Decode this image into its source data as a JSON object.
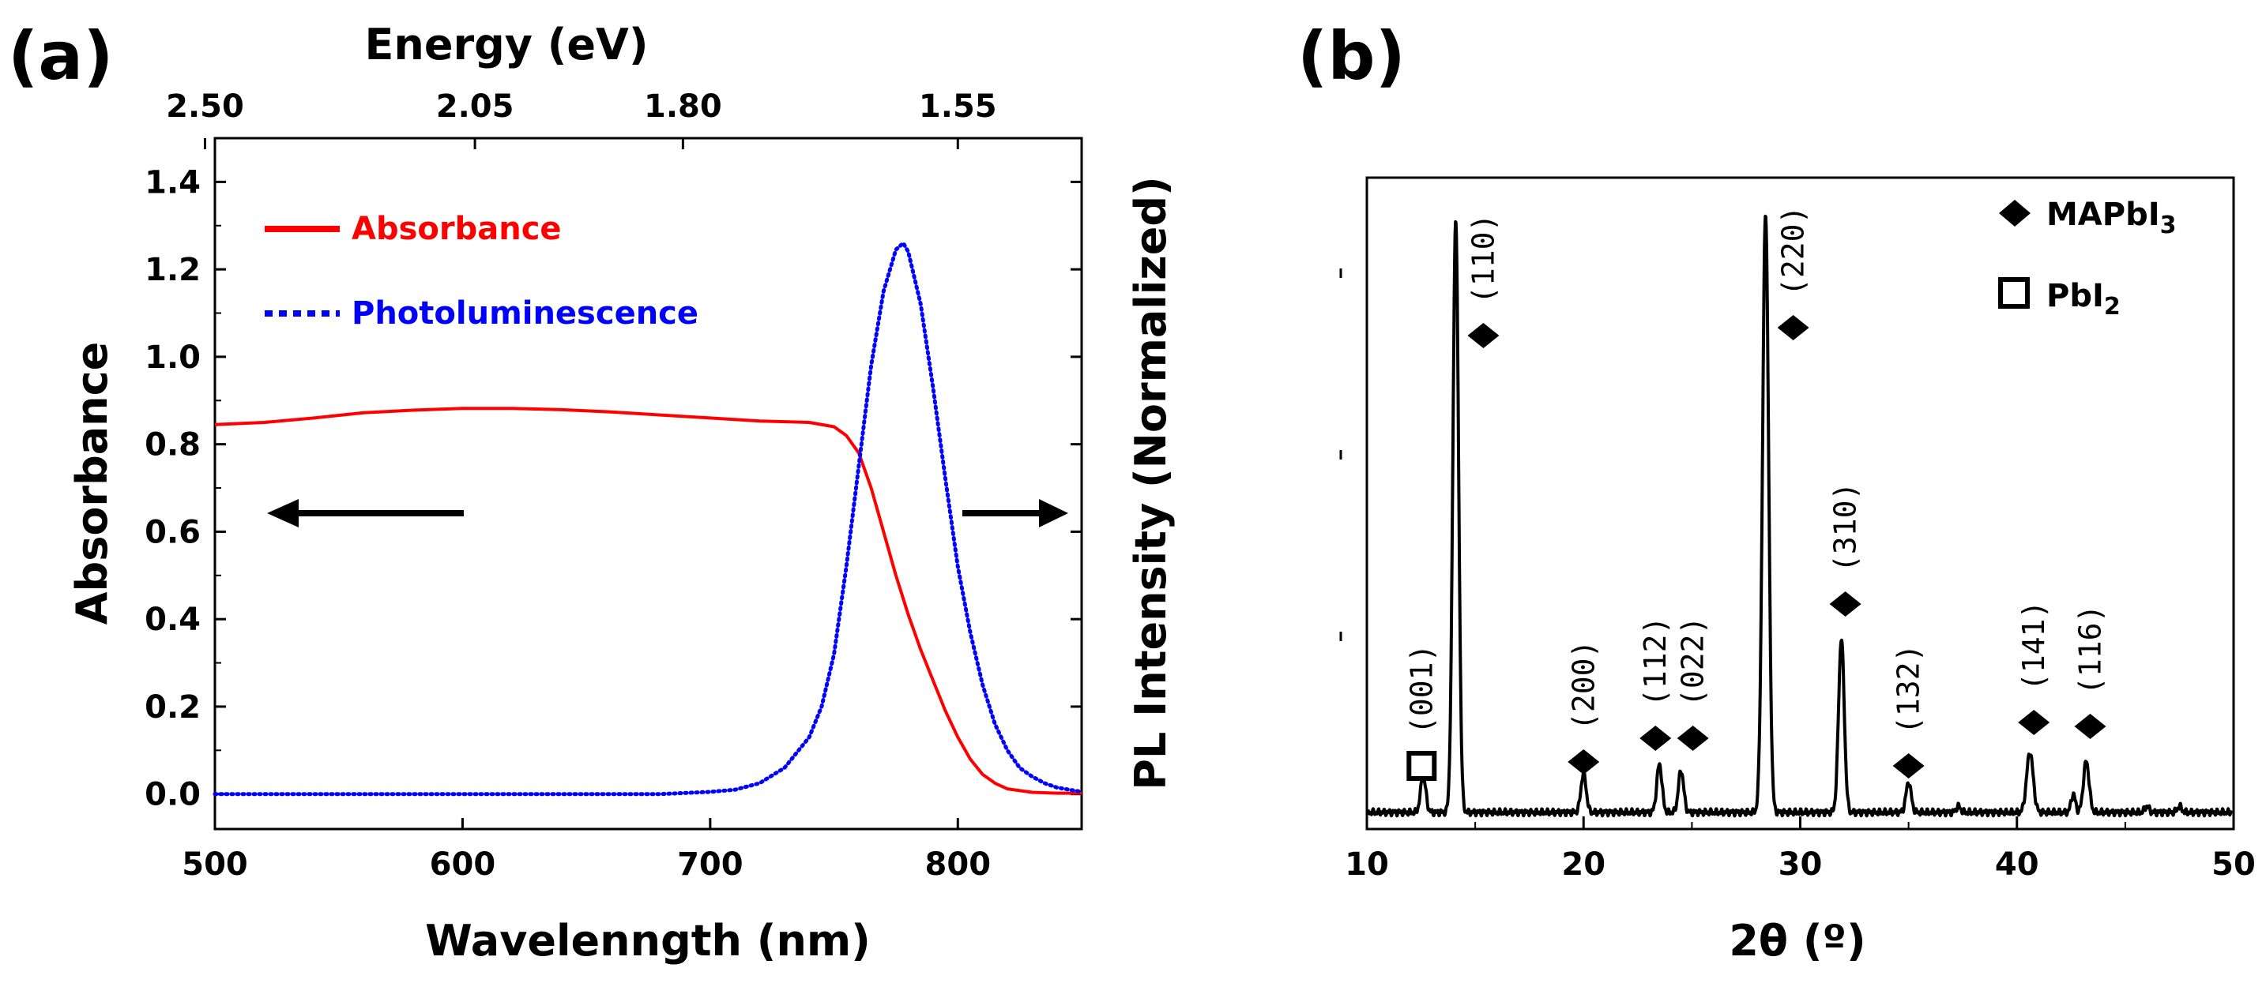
{
  "chart_data": [
    {
      "id": "a",
      "panel_label": "(a)",
      "type": "line",
      "xlabel": "Wavelenngth (nm)",
      "ylabel_left": "Absorbance",
      "ylabel_right": "PL Intensity (Normalized)",
      "top_axis_label": "Energy (eV)",
      "xlim": [
        500,
        850
      ],
      "ylim": [
        -0.08,
        1.5
      ],
      "x_ticks": [
        500,
        600,
        700,
        800
      ],
      "y_ticks": [
        0.0,
        0.2,
        0.4,
        0.6,
        0.8,
        1.0,
        1.2,
        1.4
      ],
      "y_tick_labels": [
        "0.0",
        "0.2",
        "0.4",
        "0.6",
        "0.8",
        "1.0",
        "1.2",
        "1.4"
      ],
      "top_ticks": [
        {
          "label": "2.50",
          "wavelength": 496
        },
        {
          "label": "2.05",
          "wavelength": 605
        },
        {
          "label": "1.80",
          "wavelength": 689
        },
        {
          "label": "1.55",
          "wavelength": 800
        }
      ],
      "legend_position": "top-left",
      "series": [
        {
          "name": "Absorbance",
          "color": "#ff0000",
          "style": "solid",
          "x": [
            500,
            520,
            540,
            560,
            580,
            600,
            620,
            640,
            660,
            680,
            700,
            720,
            740,
            750,
            755,
            760,
            765,
            770,
            775,
            780,
            785,
            790,
            795,
            800,
            805,
            810,
            815,
            820,
            830,
            840,
            850
          ],
          "y": [
            0.845,
            0.85,
            0.86,
            0.872,
            0.878,
            0.882,
            0.882,
            0.879,
            0.874,
            0.867,
            0.86,
            0.853,
            0.85,
            0.84,
            0.82,
            0.78,
            0.7,
            0.6,
            0.5,
            0.41,
            0.33,
            0.26,
            0.19,
            0.13,
            0.08,
            0.045,
            0.025,
            0.012,
            0.004,
            0.002,
            0.002
          ]
        },
        {
          "name": "Photoluminescence",
          "color": "#0000ff",
          "style": "dotted",
          "x": [
            500,
            560,
            620,
            680,
            700,
            710,
            720,
            730,
            740,
            745,
            750,
            755,
            760,
            765,
            770,
            775,
            778,
            780,
            785,
            790,
            795,
            800,
            805,
            810,
            815,
            820,
            825,
            830,
            835,
            840,
            850
          ],
          "y": [
            0.0,
            0.0,
            0.0,
            0.0,
            0.005,
            0.01,
            0.025,
            0.06,
            0.13,
            0.2,
            0.32,
            0.52,
            0.75,
            0.98,
            1.15,
            1.245,
            1.26,
            1.24,
            1.12,
            0.93,
            0.72,
            0.52,
            0.37,
            0.25,
            0.16,
            0.1,
            0.06,
            0.04,
            0.025,
            0.015,
            0.005
          ]
        }
      ],
      "annotations": [
        {
          "type": "arrow",
          "direction": "left",
          "meaning": "Absorbance axis"
        },
        {
          "type": "arrow",
          "direction": "right",
          "meaning": "PL axis"
        }
      ]
    },
    {
      "id": "b",
      "panel_label": "(b)",
      "type": "line",
      "xlabel": "2θ (º)",
      "ylabel": "",
      "xlim": [
        10,
        50
      ],
      "ylim": [
        0,
        100
      ],
      "x_ticks": [
        10,
        20,
        30,
        40,
        50
      ],
      "legend_position": "top-right",
      "legend": [
        {
          "symbol": "diamond",
          "label": "MAPbI",
          "subscript": "3"
        },
        {
          "symbol": "square",
          "label": "PbI",
          "subscript": "2"
        }
      ],
      "series": [
        {
          "name": "XRD pattern",
          "color": "#000000",
          "baseline": 2,
          "peaks": [
            {
              "x": 12.6,
              "height": 6,
              "width": 0.12
            },
            {
              "x": 14.1,
              "height": 99,
              "width": 0.13
            },
            {
              "x": 20.0,
              "height": 6.5,
              "width": 0.12
            },
            {
              "x": 23.5,
              "height": 8,
              "width": 0.12
            },
            {
              "x": 24.5,
              "height": 7,
              "width": 0.12
            },
            {
              "x": 28.4,
              "height": 100,
              "width": 0.14
            },
            {
              "x": 31.9,
              "height": 29,
              "width": 0.13
            },
            {
              "x": 35.0,
              "height": 5,
              "width": 0.12
            },
            {
              "x": 40.6,
              "height": 10,
              "width": 0.15
            },
            {
              "x": 42.6,
              "height": 3,
              "width": 0.1
            },
            {
              "x": 43.2,
              "height": 8.5,
              "width": 0.13
            },
            {
              "x": 37.3,
              "height": 1,
              "width": 0.1
            },
            {
              "x": 46.0,
              "height": 1,
              "width": 0.1
            },
            {
              "x": 47.5,
              "height": 1,
              "width": 0.1
            }
          ]
        }
      ],
      "peak_labels": [
        {
          "label": "(001)",
          "x": 12.6,
          "marker": "square"
        },
        {
          "label": "(110)",
          "x": 14.1,
          "marker": "diamond"
        },
        {
          "label": "(200)",
          "x": 20.0,
          "marker": "diamond"
        },
        {
          "label": "(112)",
          "x": 23.5,
          "marker": "diamond"
        },
        {
          "label": "(022)",
          "x": 24.5,
          "marker": "diamond"
        },
        {
          "label": "(220)",
          "x": 28.4,
          "marker": "diamond"
        },
        {
          "label": "(310)",
          "x": 31.9,
          "marker": "diamond"
        },
        {
          "label": "(132)",
          "x": 35.0,
          "marker": "diamond"
        },
        {
          "label": "(141)",
          "x": 40.6,
          "marker": "diamond"
        },
        {
          "label": "(116)",
          "x": 43.2,
          "marker": "diamond"
        }
      ]
    }
  ]
}
